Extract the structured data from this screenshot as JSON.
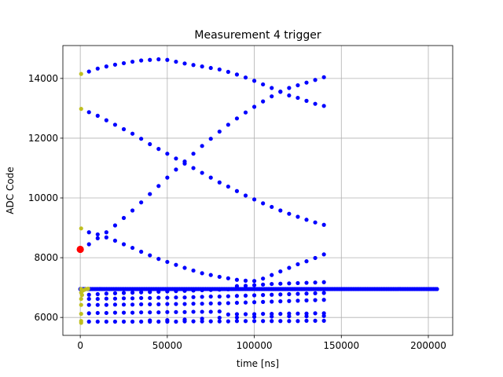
{
  "chart_data": {
    "type": "scatter",
    "title": "Measurement 4 trigger",
    "xlabel": "time [ns]",
    "ylabel": "ADC Code",
    "xlim": [
      -10000,
      214000
    ],
    "ylim": [
      5400,
      15100
    ],
    "xticks": [
      0,
      50000,
      100000,
      150000,
      200000
    ],
    "xtick_labels": [
      "0",
      "50000",
      "100000",
      "150000",
      "200000"
    ],
    "yticks": [
      6000,
      8000,
      10000,
      12000,
      14000
    ],
    "ytick_labels": [
      "6000",
      "8000",
      "10000",
      "12000",
      "14000"
    ],
    "grid": true,
    "colors": {
      "main": "#0000ff",
      "marker": "#bfbf20",
      "trigger": "#ff0000"
    },
    "series": [
      {
        "color": "#0000ff",
        "marker_size": "small",
        "description_free": true,
        "arcs": [
          {
            "x": [
              5000,
              10000,
              15000,
              20000,
              25000,
              30000,
              35000,
              40000,
              45000,
              50000,
              55000,
              60000,
              65000,
              70000,
              75000,
              80000,
              85000,
              90000,
              95000,
              100000,
              105000,
              110000,
              115000,
              120000,
              125000,
              130000,
              135000,
              140000
            ],
            "y": [
              14230,
              14330,
              14400,
              14460,
              14510,
              14560,
              14600,
              14620,
              14640,
              14620,
              14560,
              14500,
              14450,
              14400,
              14350,
              14300,
              14220,
              14130,
              14030,
              13920,
              13800,
              13680,
              13550,
              13430,
              13350,
              13250,
              13150,
              13080
            ]
          },
          {
            "x": [
              5000,
              10000,
              15000,
              20000,
              25000,
              30000,
              35000,
              40000,
              45000,
              50000,
              55000,
              60000,
              65000,
              70000,
              75000,
              80000,
              85000,
              90000,
              95000,
              100000,
              105000,
              110000,
              115000,
              120000,
              125000,
              130000,
              135000,
              140000
            ],
            "y": [
              12870,
              12750,
              12600,
              12450,
              12300,
              12150,
              11980,
              11800,
              11640,
              11480,
              11320,
              11150,
              11000,
              10840,
              10680,
              10520,
              10380,
              10230,
              10080,
              9950,
              9820,
              9700,
              9580,
              9470,
              9370,
              9270,
              9180,
              9100
            ]
          },
          {
            "x": [
              5000,
              10000,
              15000,
              20000,
              25000,
              30000,
              35000,
              40000,
              45000,
              50000,
              55000,
              60000,
              65000,
              70000,
              75000,
              80000,
              85000,
              90000,
              95000,
              100000,
              105000,
              110000,
              115000,
              120000,
              125000,
              130000,
              135000,
              140000
            ],
            "y": [
              8450,
              8650,
              8850,
              9080,
              9330,
              9580,
              9850,
              10130,
              10400,
              10680,
              10950,
              11220,
              11480,
              11740,
              11980,
              12220,
              12450,
              12660,
              12860,
              13050,
              13230,
              13400,
              13560,
              13680,
              13770,
              13860,
              13950,
              14040
            ]
          },
          {
            "x": [
              5000,
              10000,
              15000,
              20000,
              25000,
              30000,
              35000,
              40000,
              45000,
              50000,
              55000,
              60000,
              65000,
              70000,
              75000,
              80000,
              85000,
              90000,
              95000,
              100000,
              105000,
              110000,
              115000,
              120000,
              125000,
              130000,
              135000,
              140000
            ],
            "y": [
              8850,
              8780,
              8680,
              8570,
              8450,
              8330,
              8200,
              8080,
              7960,
              7860,
              7760,
              7660,
              7570,
              7480,
              7420,
              7360,
              7310,
              7260,
              7230,
              7220,
              7300,
              7420,
              7540,
              7660,
              7780,
              7880,
              7990,
              8110
            ]
          },
          {
            "x": [
              5000,
              10000,
              15000,
              20000,
              25000,
              30000,
              35000,
              40000,
              45000,
              50000,
              55000,
              60000,
              65000,
              70000,
              75000,
              80000,
              85000,
              90000,
              95000,
              100000,
              105000,
              110000,
              115000,
              120000,
              125000,
              130000,
              135000,
              140000
            ],
            "y": [
              6760,
              6780,
              6800,
              6810,
              6820,
              6830,
              6840,
              6850,
              6860,
              6870,
              6880,
              6890,
              6900,
              6910,
              6920,
              6930,
              6940,
              7050,
              7060,
              7080,
              7100,
              7120,
              7130,
              7140,
              7150,
              7160,
              7170,
              7180
            ]
          },
          {
            "x": [
              5000,
              10000,
              15000,
              20000,
              25000,
              30000,
              35000,
              40000,
              45000,
              50000,
              55000,
              60000,
              65000,
              70000,
              75000,
              80000,
              85000,
              90000,
              95000,
              100000,
              105000,
              110000,
              115000,
              120000,
              125000,
              130000,
              135000,
              140000
            ],
            "y": [
              6620,
              6620,
              6630,
              6630,
              6640,
              6640,
              6650,
              6650,
              6660,
              6660,
              6670,
              6670,
              6680,
              6690,
              6700,
              6700,
              6710,
              6720,
              6730,
              6740,
              6750,
              6760,
              6770,
              6780,
              6790,
              6800,
              6810,
              6820
            ]
          },
          {
            "x": [
              5000,
              10000,
              15000,
              20000,
              25000,
              30000,
              35000,
              40000,
              45000,
              50000,
              55000,
              60000,
              65000,
              70000,
              75000,
              80000,
              85000,
              90000,
              95000,
              100000,
              105000,
              110000,
              115000,
              120000,
              125000,
              130000,
              135000,
              140000
            ],
            "y": [
              6420,
              6420,
              6420,
              6430,
              6430,
              6430,
              6440,
              6440,
              6440,
              6450,
              6450,
              6450,
              6460,
              6460,
              6470,
              6470,
              6480,
              6490,
              6500,
              6510,
              6520,
              6530,
              6540,
              6550,
              6560,
              6570,
              6580,
              6590
            ]
          },
          {
            "x": [
              5000,
              10000,
              15000,
              20000,
              25000,
              30000,
              35000,
              40000,
              45000,
              50000,
              55000,
              60000,
              65000,
              70000,
              75000,
              80000,
              85000,
              90000,
              95000,
              100000,
              105000,
              110000,
              115000,
              120000,
              125000,
              130000,
              135000,
              140000
            ],
            "y": [
              6140,
              6150,
              6150,
              6160,
              6160,
              6160,
              6170,
              6170,
              6170,
              6180,
              6180,
              6180,
              6190,
              6190,
              6190,
              6200,
              6100,
              6110,
              6110,
              6110,
              6120,
              6120,
              6120,
              6130,
              6130,
              6130,
              6140,
              6140
            ]
          },
          {
            "x": [
              5000,
              10000,
              15000,
              20000,
              25000,
              30000,
              35000,
              40000,
              45000,
              50000,
              55000,
              60000,
              65000,
              70000,
              75000,
              80000,
              85000,
              90000,
              95000,
              100000,
              105000,
              110000,
              115000,
              120000,
              125000,
              130000,
              135000,
              140000
            ],
            "y": [
              5860,
              5860,
              5860,
              5860,
              5860,
              5860,
              5860,
              5860,
              5860,
              5860,
              5860,
              5870,
              5870,
              5870,
              5870,
              5870,
              5870,
              5880,
              5880,
              5880,
              5880,
              5880,
              5880,
              5880,
              5880,
              5890,
              5890,
              5890
            ]
          },
          {
            "x": [
              40000,
              50000,
              60000,
              70000,
              80000,
              90000,
              100000,
              110000,
              120000,
              130000,
              140000
            ],
            "y": [
              5900,
              5910,
              5930,
              5960,
              5990,
              6000,
              6020,
              6030,
              6040,
              6040,
              6050
            ]
          }
        ],
        "baseline": {
          "x_start": 0,
          "x_end": 205000,
          "y": 6950
        }
      },
      {
        "color": "#bfbf20",
        "marker_size": "small",
        "points": [
          {
            "x": 500,
            "y": 14150
          },
          {
            "x": 500,
            "y": 12980
          },
          {
            "x": 500,
            "y": 8980
          },
          {
            "x": 500,
            "y": 6950
          },
          {
            "x": 500,
            "y": 6830
          },
          {
            "x": 500,
            "y": 6620
          },
          {
            "x": 500,
            "y": 6420
          },
          {
            "x": 500,
            "y": 6120
          },
          {
            "x": 500,
            "y": 5880
          },
          {
            "x": 500,
            "y": 5820
          },
          {
            "x": 1500,
            "y": 6900
          },
          {
            "x": 2500,
            "y": 6930
          },
          {
            "x": 3500,
            "y": 6950
          },
          {
            "x": 4500,
            "y": 6960
          },
          {
            "x": 1000,
            "y": 6750
          }
        ]
      },
      {
        "color": "#ff0000",
        "marker_size": "large",
        "points": [
          {
            "x": 0,
            "y": 8280
          }
        ]
      }
    ]
  }
}
